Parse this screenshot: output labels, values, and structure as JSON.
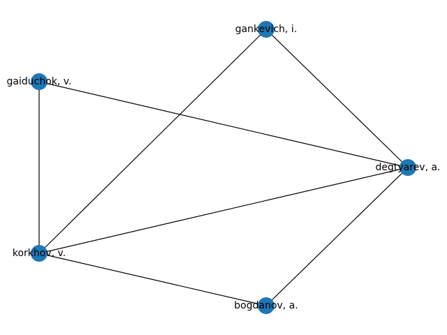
{
  "graph": {
    "nodes": [
      {
        "id": "gankevich",
        "label": "gankevich, i."
      },
      {
        "id": "gaiduchok",
        "label": "gaiduchok, v."
      },
      {
        "id": "degtyarev",
        "label": "degtyarev, a."
      },
      {
        "id": "korkhov",
        "label": "korkhov, v."
      },
      {
        "id": "bogdanov",
        "label": "bogdanov, a."
      }
    ],
    "edges": [
      {
        "source": "gankevich",
        "target": "degtyarev"
      },
      {
        "source": "gankevich",
        "target": "korkhov"
      },
      {
        "source": "gaiduchok",
        "target": "degtyarev"
      },
      {
        "source": "gaiduchok",
        "target": "korkhov"
      },
      {
        "source": "korkhov",
        "target": "degtyarev"
      },
      {
        "source": "korkhov",
        "target": "bogdanov"
      },
      {
        "source": "bogdanov",
        "target": "degtyarev"
      }
    ],
    "node_color": "#1f77b4",
    "edge_color": "#000000"
  }
}
